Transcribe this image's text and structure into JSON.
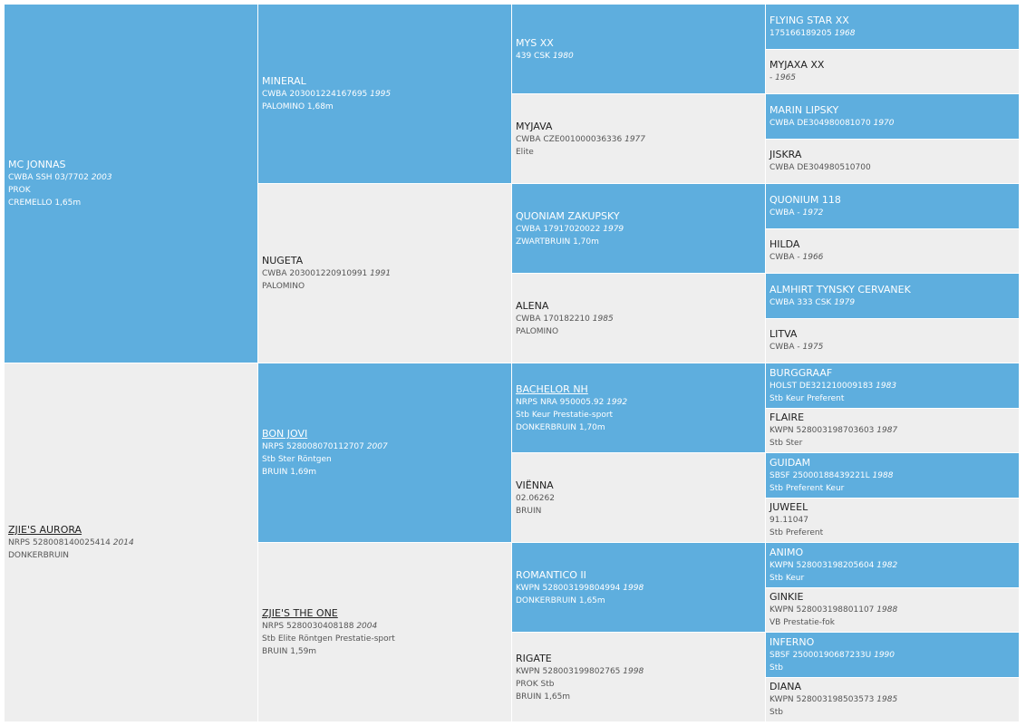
{
  "generations": [
    [
      {
        "name": "MC JONNAS",
        "reg": "CWBA SSH 03/7702",
        "year": "2003",
        "lines": [
          "PROK",
          "CREMELLO 1,65m"
        ]
      },
      {
        "name": "ZJIE'S AURORA",
        "reg": "NRPS 528008140025414",
        "year": "2014",
        "lines": [
          "DONKERBRUIN"
        ],
        "link": true
      }
    ],
    [
      {
        "name": "MINERAL",
        "reg": "CWBA 203001224167695",
        "year": "1995",
        "lines": [
          "PALOMINO 1,68m"
        ]
      },
      {
        "name": "NUGETA",
        "reg": "CWBA 203001220910991",
        "year": "1991",
        "lines": [
          "PALOMINO"
        ]
      },
      {
        "name": "BON JOVI",
        "reg": "NRPS 528008070112707",
        "year": "2007",
        "lines": [
          "Stb Ster Röntgen",
          "BRUIN 1,69m"
        ],
        "link": true
      },
      {
        "name": "ZJIE'S THE ONE",
        "reg": "NRPS 5280030408188",
        "year": "2004",
        "lines": [
          "Stb Elite Röntgen Prestatie-sport",
          "BRUIN 1,59m"
        ],
        "link": true
      }
    ],
    [
      {
        "name": "MYS XX",
        "reg": "439 CSK",
        "year": "1980"
      },
      {
        "name": "MYJAVA",
        "reg": "CWBA CZE001000036336",
        "year": "1977",
        "lines": [
          "Elite"
        ]
      },
      {
        "name": "QUONIAM ZAKUPSKY",
        "reg": "CWBA 17917020022",
        "year": "1979",
        "lines": [
          "ZWARTBRUIN 1,70m"
        ]
      },
      {
        "name": "ALENA",
        "reg": "CWBA 170182210",
        "year": "1985",
        "lines": [
          "PALOMINO"
        ]
      },
      {
        "name": "BACHELOR NH",
        "reg": "NRPS NRA 950005.92",
        "year": "1992",
        "lines": [
          "Stb Keur Prestatie-sport",
          "DONKERBRUIN 1,70m"
        ],
        "link": true
      },
      {
        "name": "VIËNNA",
        "reg": "02.06262",
        "lines": [
          "BRUIN"
        ]
      },
      {
        "name": "ROMANTICO II",
        "reg": "KWPN 528003199804994",
        "year": "1998",
        "lines": [
          "DONKERBRUIN 1,65m"
        ]
      },
      {
        "name": "RIGATE",
        "reg": "KWPN 528003199802765",
        "year": "1998",
        "lines": [
          "PROK Stb",
          "BRUIN 1,65m"
        ]
      }
    ],
    [
      {
        "name": "FLYING STAR XX",
        "reg": "175166189205",
        "year": "1968"
      },
      {
        "name": "MYJAXA XX",
        "reg": "-",
        "year": "1965"
      },
      {
        "name": "MARIN LIPSKY",
        "reg": "CWBA DE304980081070",
        "year": "1970"
      },
      {
        "name": "JISKRA",
        "reg": "CWBA DE304980510700"
      },
      {
        "name": "QUONIUM 118",
        "reg": "CWBA -",
        "year": "1972"
      },
      {
        "name": "HILDA",
        "reg": "CWBA -",
        "year": "1966"
      },
      {
        "name": "ALMHIRT TYNSKY CERVANEK",
        "reg": "CWBA 333 CSK",
        "year": "1979"
      },
      {
        "name": "LITVA",
        "reg": "CWBA -",
        "year": "1975"
      },
      {
        "name": "BURGGRAAF",
        "reg": "HOLST DE321210009183",
        "year": "1983",
        "lines": [
          "Stb Keur Preferent"
        ]
      },
      {
        "name": "FLAIRE",
        "reg": "KWPN 528003198703603",
        "year": "1987",
        "lines": [
          "Stb Ster"
        ]
      },
      {
        "name": "GUIDAM",
        "reg": "SBSF 25000188439221L",
        "year": "1988",
        "lines": [
          "Stb Preferent Keur"
        ]
      },
      {
        "name": "JUWEEL",
        "reg": "91.11047",
        "lines": [
          "Stb Preferent"
        ]
      },
      {
        "name": "ANIMO",
        "reg": "KWPN 528003198205604",
        "year": "1982",
        "lines": [
          "Stb Keur"
        ]
      },
      {
        "name": "GINKIE",
        "reg": "KWPN 528003198801107",
        "year": "1988",
        "lines": [
          "VB Prestatie-fok"
        ]
      },
      {
        "name": "INFERNO",
        "reg": "SBSF 25000190687233U",
        "year": "1990",
        "lines": [
          "Stb"
        ]
      },
      {
        "name": "DIANA",
        "reg": "KWPN 528003198503573",
        "year": "1985",
        "lines": [
          "Stb"
        ]
      }
    ]
  ]
}
